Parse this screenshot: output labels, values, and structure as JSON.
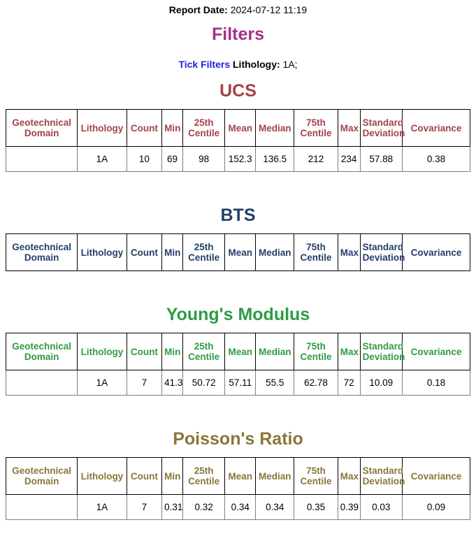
{
  "header": {
    "report_date_label": "Report Date:",
    "report_date_value": "2024-07-12 11:19"
  },
  "filters": {
    "title": "Filters",
    "title_color": "#A53189",
    "tick_filters_label": "Tick Filters",
    "tick_filters_color": "#2222DD",
    "lithology_label": "Lithology:",
    "lithology_value": "1A;"
  },
  "table": {
    "columns": [
      "Geotechnical Domain",
      "Lithology",
      "Count",
      "Min",
      "25th Centile",
      "Mean",
      "Median",
      "75th Centile",
      "Max",
      "Standard Deviation",
      "Covariance"
    ]
  },
  "sections": [
    {
      "id": "ucs",
      "title": "UCS",
      "color": "#A34249",
      "rows": [
        [
          "",
          "1A",
          "10",
          "69",
          "98",
          "152.3",
          "136.5",
          "212",
          "234",
          "57.88",
          "0.38"
        ]
      ]
    },
    {
      "id": "bts",
      "title": "BTS",
      "color": "#234069",
      "rows": []
    },
    {
      "id": "youngs-modulus",
      "title": "Young's Modulus",
      "color": "#2E9C44",
      "rows": [
        [
          "",
          "1A",
          "7",
          "41.3",
          "50.72",
          "57.11",
          "55.5",
          "62.78",
          "72",
          "10.09",
          "0.18"
        ]
      ]
    },
    {
      "id": "poissons-ratio",
      "title": "Poisson's Ratio",
      "color": "#8A7639",
      "rows": [
        [
          "",
          "1A",
          "7",
          "0.31",
          "0.32",
          "0.34",
          "0.34",
          "0.35",
          "0.39",
          "0.03",
          "0.09"
        ]
      ]
    }
  ]
}
